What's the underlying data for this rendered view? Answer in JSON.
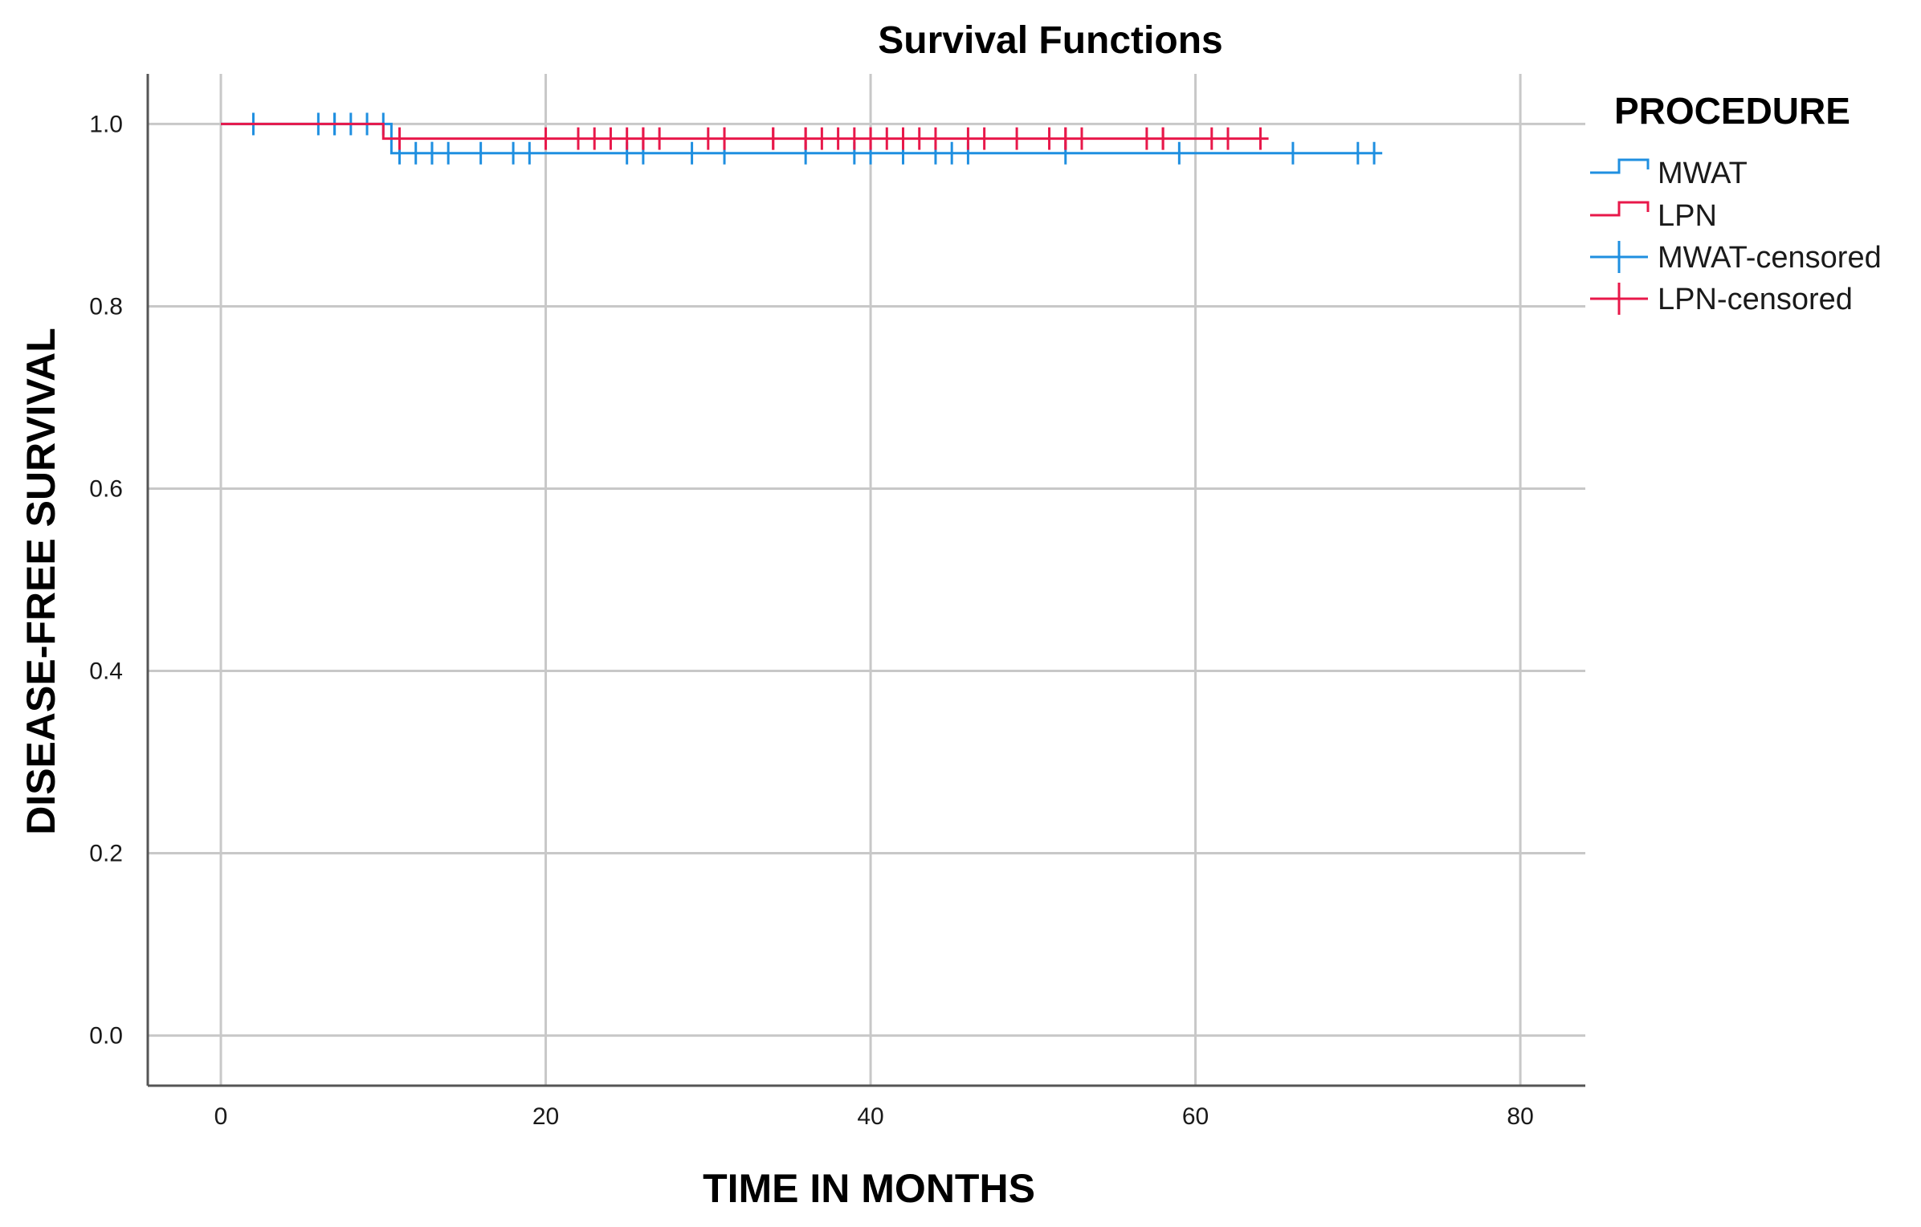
{
  "chart_data": {
    "type": "line",
    "title": "Survival Functions",
    "xlabel": "TIME IN MONTHS",
    "ylabel": "DISEASE-FREE SURVIVAL",
    "xlim": [
      -4.5,
      84
    ],
    "ylim": [
      -0.055,
      1.055
    ],
    "xticks": [
      0,
      20,
      40,
      60,
      80
    ],
    "yticks": [
      0.0,
      0.2,
      0.4,
      0.6,
      0.8,
      1.0
    ],
    "xtick_labels": [
      "0",
      "20",
      "40",
      "60",
      "80"
    ],
    "ytick_labels": [
      "0.0",
      "0.2",
      "0.4",
      "0.6",
      "0.8",
      "1.0"
    ],
    "grid": true,
    "legend": {
      "title": "PROCEDURE",
      "position": "right",
      "entries": [
        "MWAT",
        "LPN",
        "MWAT-censored",
        "LPN-censored"
      ]
    },
    "series": [
      {
        "name": "MWAT",
        "color": "#1f8fe0",
        "step_x": [
          0,
          10.5,
          71.5
        ],
        "step_y": [
          1.0,
          0.968,
          0.968
        ],
        "censored_x": [
          2,
          6,
          7,
          7,
          8,
          9,
          10,
          11,
          12,
          13,
          13,
          14,
          16,
          18,
          19,
          25,
          26,
          29,
          31,
          36,
          39,
          40,
          42,
          44,
          45,
          46,
          52,
          59,
          66,
          70,
          71
        ],
        "censored_y": [
          1.0,
          1.0,
          1.0,
          1.0,
          1.0,
          1.0,
          1.0,
          0.968,
          0.968,
          0.968,
          0.968,
          0.968,
          0.968,
          0.968,
          0.968,
          0.968,
          0.968,
          0.968,
          0.968,
          0.968,
          0.968,
          0.968,
          0.968,
          0.968,
          0.968,
          0.968,
          0.968,
          0.968,
          0.968,
          0.968,
          0.968
        ]
      },
      {
        "name": "LPN",
        "color": "#e8184a",
        "step_x": [
          0,
          10,
          64.5
        ],
        "step_y": [
          1.0,
          0.984,
          0.984
        ],
        "censored_x": [
          11,
          20,
          22,
          23,
          24,
          25,
          26,
          26,
          27,
          30,
          31,
          31,
          34,
          34,
          36,
          36,
          37,
          38,
          39,
          40,
          40,
          41,
          42,
          43,
          44,
          46,
          47,
          49,
          51,
          52,
          52,
          53,
          57,
          58,
          58,
          61,
          62,
          64
        ],
        "censored_y": [
          0.984,
          0.984,
          0.984,
          0.984,
          0.984,
          0.984,
          0.984,
          0.984,
          0.984,
          0.984,
          0.984,
          0.984,
          0.984,
          0.984,
          0.984,
          0.984,
          0.984,
          0.984,
          0.984,
          0.984,
          0.984,
          0.984,
          0.984,
          0.984,
          0.984,
          0.984,
          0.984,
          0.984,
          0.984,
          0.984,
          0.984,
          0.984,
          0.984,
          0.984,
          0.984,
          0.984,
          0.984,
          0.984
        ]
      }
    ]
  }
}
